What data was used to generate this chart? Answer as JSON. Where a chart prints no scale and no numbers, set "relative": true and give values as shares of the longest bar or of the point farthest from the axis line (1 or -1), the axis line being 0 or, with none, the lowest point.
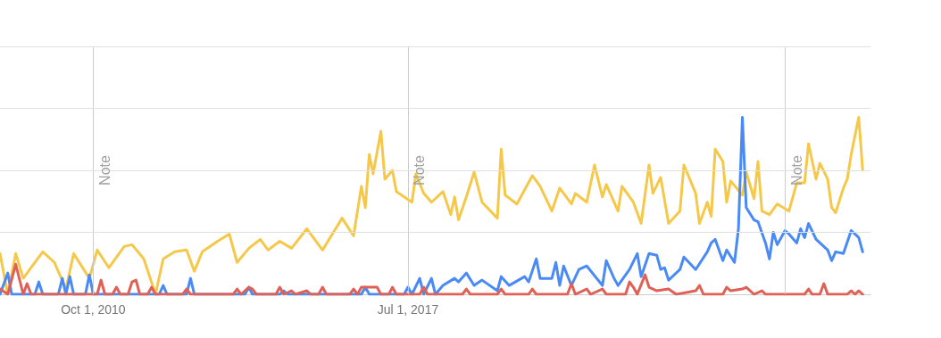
{
  "chart_data": {
    "type": "line",
    "relative": true,
    "xlim": [
      "2008-10",
      "2027-06"
    ],
    "xticks": [
      {
        "value": "2010-10-01",
        "label": "Oct 1, 2010"
      },
      {
        "value": "2017-07-01",
        "label": "Jul 1, 2017"
      },
      {
        "value": "2025-08-01",
        "label": null
      }
    ],
    "marker": "none",
    "line_style": "solid",
    "ref_lines": [
      {
        "axis": "x",
        "value": "2010-10-01",
        "label": "Note"
      },
      {
        "axis": "x",
        "value": "2017-07-01",
        "label": "Note"
      },
      {
        "axis": "x",
        "value": "2025-08-01",
        "label": "Note"
      },
      {
        "axis": "y",
        "value": 0.35,
        "color": "#e0e0e0"
      },
      {
        "axis": "y",
        "value": 0.7,
        "color": "#e0e0e0"
      },
      {
        "axis": "y",
        "value": 1.05,
        "color": "#e0e0e0"
      },
      {
        "axis": "y",
        "value": 1.4,
        "color": "#e0e0e0"
      }
    ],
    "series": [
      {
        "color": "#f6c84a",
        "x": [
          "2008-10",
          "2008-12",
          "2009-02",
          "2009-04",
          "2009-06",
          "2009-09",
          "2009-12",
          "2010-03",
          "2010-05",
          "2010-09",
          "2010-11",
          "2011-02",
          "2011-06",
          "2011-08",
          "2011-11",
          "2012-02",
          "2012-04",
          "2012-07",
          "2012-10",
          "2012-12",
          "2013-02",
          "2013-06",
          "2013-09",
          "2013-11",
          "2014-02",
          "2014-05",
          "2014-07",
          "2014-10",
          "2015-01",
          "2015-05",
          "2015-09",
          "2016-02",
          "2016-05",
          "2016-07",
          "2016-08",
          "2016-09",
          "2016-10",
          "2016-12",
          "2017-01",
          "2017-03",
          "2017-04",
          "2017-08",
          "2017-09",
          "2017-11",
          "2018-01",
          "2018-04",
          "2018-06",
          "2018-07",
          "2018-08",
          "2018-10",
          "2018-12",
          "2019-02",
          "2019-06",
          "2019-07",
          "2019-08",
          "2019-11",
          "2020-03",
          "2020-05",
          "2020-08",
          "2020-10",
          "2021-01",
          "2021-02",
          "2021-05",
          "2021-07",
          "2021-09",
          "2021-10",
          "2022-01",
          "2022-02",
          "2022-05",
          "2022-07",
          "2022-09",
          "2022-10",
          "2022-12",
          "2023-02",
          "2023-05",
          "2023-06",
          "2023-09",
          "2023-10",
          "2023-12",
          "2024-01",
          "2024-02",
          "2024-04",
          "2024-05",
          "2024-06",
          "2024-09",
          "2024-10",
          "2024-12",
          "2025-01",
          "2025-02",
          "2025-04",
          "2025-06",
          "2025-09",
          "2025-11",
          "2026-01",
          "2026-02",
          "2026-04",
          "2026-05",
          "2026-07",
          "2026-08",
          "2026-09",
          "2026-11",
          "2026-12",
          "2027-01",
          "2027-03",
          "2027-04"
        ],
        "values": [
          0.23,
          0,
          0.23,
          0.09,
          0.15,
          0.24,
          0.18,
          0.03,
          0.23,
          0.09,
          0.25,
          0.15,
          0.27,
          0.28,
          0.2,
          0,
          0.2,
          0.24,
          0.25,
          0.13,
          0.24,
          0.3,
          0.34,
          0.18,
          0.26,
          0.31,
          0.25,
          0.3,
          0.26,
          0.37,
          0.25,
          0.43,
          0.33,
          0.61,
          0.49,
          0.79,
          0.68,
          0.92,
          0.65,
          0.7,
          0.58,
          0.52,
          0.68,
          0.57,
          0.52,
          0.58,
          0.45,
          0.55,
          0.42,
          0.55,
          0.69,
          0.52,
          0.43,
          0.82,
          0.56,
          0.51,
          0.67,
          0.61,
          0.47,
          0.6,
          0.51,
          0.57,
          0.52,
          0.73,
          0.55,
          0.62,
          0.47,
          0.61,
          0.52,
          0.4,
          0.73,
          0.57,
          0.66,
          0.4,
          0.47,
          0.73,
          0.57,
          0.4,
          0.52,
          0.44,
          0.82,
          0.75,
          0.52,
          0.64,
          0.56,
          0.69,
          0.54,
          0.75,
          0.47,
          0.45,
          0.51,
          0.47,
          0.63,
          0.63,
          0.85,
          0.65,
          0.74,
          0.65,
          0.49,
          0.46,
          0.6,
          0.65,
          0.79,
          1,
          0.7
        ]
      },
      {
        "color": "#4a8af4",
        "x": [
          "2008-10",
          "2008-12",
          "2009-01",
          "2009-07",
          "2009-08",
          "2009-09",
          "2010-01",
          "2010-02",
          "2010-03",
          "2010-04",
          "2010-05",
          "2010-08",
          "2010-09",
          "2010-10",
          "2012-03",
          "2012-04",
          "2012-05",
          "2012-10",
          "2012-11",
          "2012-12",
          "2014-01",
          "2014-02",
          "2014-03",
          "2014-10",
          "2014-11",
          "2014-12",
          "2016-07",
          "2016-08",
          "2016-09",
          "2017-06",
          "2017-07",
          "2017-08",
          "2017-10",
          "2017-11",
          "2018-01",
          "2018-02",
          "2018-04",
          "2018-07",
          "2018-08",
          "2018-10",
          "2018-12",
          "2019-02",
          "2019-06",
          "2019-07",
          "2019-09",
          "2020-01",
          "2020-02",
          "2020-04",
          "2020-05",
          "2020-08",
          "2020-09",
          "2020-10",
          "2020-11",
          "2021-01",
          "2021-03",
          "2021-05",
          "2021-09",
          "2021-10",
          "2021-12",
          "2022-01",
          "2022-04",
          "2022-06",
          "2022-07",
          "2022-09",
          "2022-11",
          "2022-12",
          "2023-01",
          "2023-02",
          "2023-05",
          "2023-06",
          "2023-09",
          "2023-12",
          "2024-01",
          "2024-02",
          "2024-04",
          "2024-05",
          "2024-07",
          "2024-08",
          "2024-09",
          "2024-10",
          "2024-12",
          "2025-01",
          "2025-03",
          "2025-04",
          "2025-05",
          "2025-06",
          "2025-08",
          "2025-09",
          "2025-11",
          "2025-12",
          "2026-01",
          "2026-02",
          "2026-04",
          "2026-07",
          "2026-08",
          "2026-09",
          "2026-11",
          "2027-01",
          "2027-03",
          "2027-04"
        ],
        "values": [
          0,
          0.12,
          0,
          0,
          0.07,
          0,
          0,
          0.09,
          0,
          0.1,
          0,
          0,
          0.11,
          0,
          0,
          0.05,
          0,
          0,
          0.09,
          0,
          0,
          0.04,
          0,
          0,
          0.02,
          0,
          0,
          0.04,
          0,
          0,
          0.04,
          0,
          0.09,
          0,
          0.09,
          0,
          0.05,
          0.09,
          0.07,
          0.12,
          0.05,
          0.08,
          0.02,
          0.1,
          0.05,
          0.1,
          0.07,
          0.2,
          0.09,
          0.09,
          0.18,
          0.05,
          0.16,
          0.05,
          0.14,
          0.16,
          0.05,
          0.19,
          0.09,
          0.05,
          0.14,
          0.23,
          0.1,
          0.23,
          0.22,
          0.14,
          0.15,
          0.08,
          0.14,
          0.21,
          0.14,
          0.24,
          0.29,
          0.31,
          0.19,
          0.25,
          0.18,
          0.37,
          1,
          0.49,
          0.42,
          0.41,
          0.29,
          0.2,
          0.35,
          0.28,
          0.36,
          0.34,
          0.29,
          0.37,
          0.32,
          0.4,
          0.31,
          0.25,
          0.19,
          0.24,
          0.23,
          0.36,
          0.32,
          0.24
        ]
      },
      {
        "color": "#e06055",
        "x": [
          "2008-10",
          "2008-12",
          "2009-02",
          "2009-04",
          "2009-05",
          "2009-06",
          "2010-11",
          "2010-12",
          "2011-01",
          "2011-03",
          "2011-04",
          "2011-05",
          "2011-07",
          "2011-08",
          "2011-09",
          "2011-10",
          "2011-12",
          "2012-01",
          "2012-02",
          "2012-09",
          "2012-10",
          "2012-11",
          "2013-10",
          "2013-11",
          "2013-12",
          "2014-02",
          "2014-03",
          "2014-04",
          "2014-09",
          "2014-10",
          "2014-11",
          "2015-01",
          "2015-02",
          "2015-05",
          "2015-06",
          "2015-08",
          "2015-09",
          "2015-10",
          "2016-04",
          "2016-05",
          "2016-06",
          "2016-07",
          "2016-09",
          "2016-11",
          "2016-12",
          "2017-02",
          "2017-03",
          "2017-04",
          "2017-10",
          "2017-11",
          "2017-12",
          "2018-09",
          "2018-10",
          "2018-11",
          "2019-06",
          "2019-07",
          "2019-08",
          "2020-02",
          "2020-03",
          "2020-04",
          "2020-12",
          "2021-01",
          "2021-02",
          "2021-05",
          "2021-06",
          "2021-09",
          "2021-10",
          "2022-03",
          "2022-04",
          "2022-05",
          "2022-06",
          "2022-08",
          "2022-09",
          "2022-11",
          "2023-02",
          "2023-04",
          "2023-09",
          "2023-10",
          "2023-11",
          "2024-04",
          "2024-05",
          "2024-06",
          "2024-09",
          "2024-10",
          "2024-12",
          "2025-02",
          "2025-03",
          "2026-01",
          "2026-02",
          "2026-03",
          "2026-05",
          "2026-06",
          "2026-07",
          "2026-12",
          "2027-01",
          "2027-02",
          "2027-03",
          "2027-04"
        ],
        "values": [
          0.03,
          0,
          0.17,
          0,
          0.06,
          0,
          0,
          0.08,
          0,
          0,
          0.04,
          0,
          0,
          0.07,
          0.08,
          0,
          0,
          0.04,
          0,
          0,
          0.03,
          0,
          0,
          0.03,
          0,
          0.04,
          0.03,
          0,
          0,
          0.04,
          0,
          0.02,
          0,
          0.02,
          0,
          0,
          0.04,
          0,
          0,
          0.03,
          0,
          0.04,
          0.04,
          0.04,
          0,
          0,
          0.04,
          0,
          0,
          0.04,
          0,
          0,
          0.03,
          0,
          0,
          0.03,
          0,
          0,
          0.03,
          0,
          0,
          0.06,
          0,
          0.03,
          0,
          0.03,
          0,
          0,
          0.07,
          0.04,
          0,
          0.11,
          0.04,
          0.02,
          0.03,
          0,
          0.02,
          0.05,
          0,
          0,
          0.04,
          0.02,
          0.03,
          0.04,
          0,
          0.02,
          0,
          0,
          0.03,
          0,
          0,
          0.06,
          0,
          0,
          0.02,
          0,
          0.02,
          0
        ]
      }
    ]
  }
}
